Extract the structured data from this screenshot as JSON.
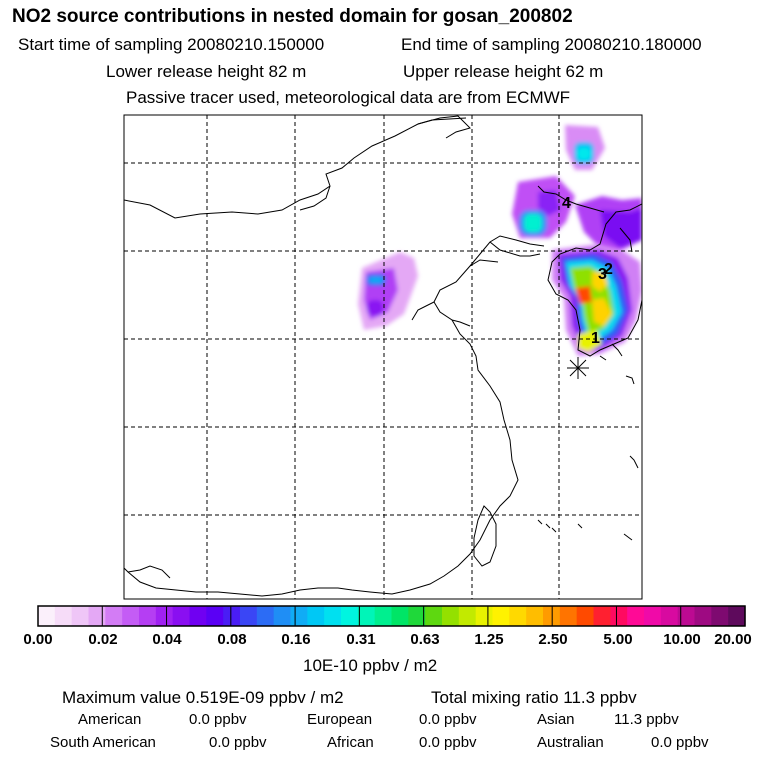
{
  "header": {
    "title": "NO2 source contributions in nested domain for gosan_200802",
    "start_time": "Start time of sampling 20080210.150000",
    "end_time": "End time of sampling 20080210.180000",
    "lower_release": "Lower release height   82 m",
    "upper_release": "Upper release height   62 m",
    "tracer_note": "Passive tracer used, meteorological data are from ECMWF"
  },
  "map": {
    "markers": [
      {
        "label": "1"
      },
      {
        "label": "2"
      },
      {
        "label": "3"
      },
      {
        "label": "4"
      }
    ],
    "station_symbol": "receptor-star"
  },
  "colorbar": {
    "unit": "10E-10 ppbv / m2",
    "tick_labels": [
      "0.00",
      "0.02",
      "0.04",
      "0.08",
      "0.16",
      "0.31",
      "0.63",
      "1.25",
      "2.50",
      "5.00",
      "10.00",
      "20.00"
    ],
    "colors": [
      "#fbf0fb",
      "#f6dcf8",
      "#efc6f7",
      "#e4a8f5",
      "#d37cf5",
      "#c45cf5",
      "#b53ef3",
      "#a021f2",
      "#8a0ff1",
      "#7000f2",
      "#5a00f5",
      "#4a1df5",
      "#3a46f5",
      "#2c6cf5",
      "#1f8ef5",
      "#10acf5",
      "#00c8f5",
      "#00e0f0",
      "#00f5e0",
      "#00f5b8",
      "#00ef8f",
      "#00e566",
      "#1fd83a",
      "#5ed810",
      "#94e000",
      "#c2ea00",
      "#e8f200",
      "#fff200",
      "#ffd900",
      "#ffbd00",
      "#ff9b00",
      "#ff7400",
      "#ff4a00",
      "#ff2030",
      "#ff0a60",
      "#ff0a96",
      "#f00aa8",
      "#d80aa0",
      "#bc0a92",
      "#9e0a82",
      "#7e0a70",
      "#5e0a5c"
    ]
  },
  "footer": {
    "max_value": "Maximum value  0.519E-09 ppbv / m2",
    "total_mixing": "Total mixing ratio       11.3 ppbv",
    "american": "American",
    "american_val": "0.0 ppbv",
    "european": "European",
    "european_val": "0.0 ppbv",
    "asian": "Asian",
    "asian_val": "11.3 ppbv",
    "south_american": "South American",
    "south_american_val": "0.0 ppbv",
    "african": "African",
    "african_val": "0.0 ppbv",
    "australian": "Australian",
    "australian_val": "0.0 ppbv"
  }
}
